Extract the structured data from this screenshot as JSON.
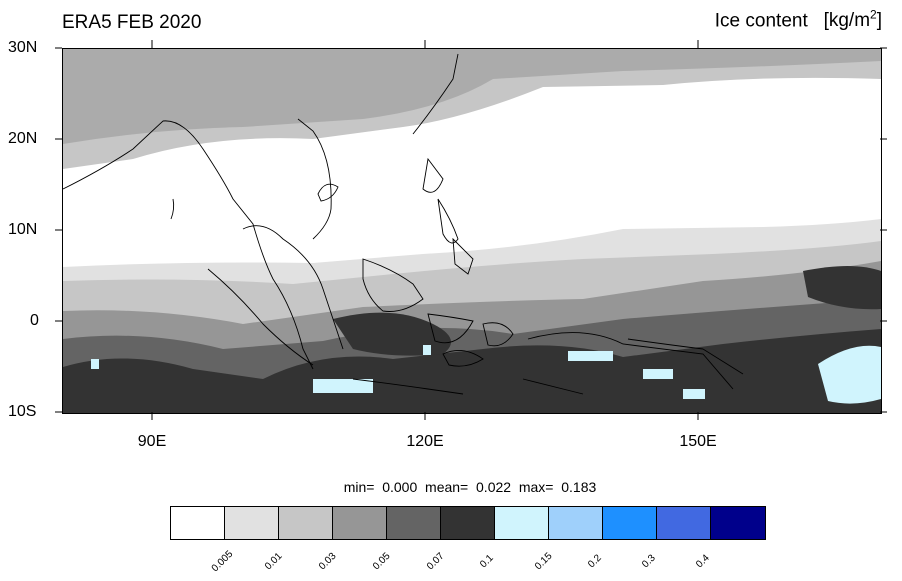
{
  "title_left": "ERA5 FEB 2020",
  "title_right": {
    "label": "Ice content",
    "unit_base": "[kg/m",
    "unit_sup": "2",
    "unit_close": "]"
  },
  "lat_labels": [
    "30N",
    "20N",
    "10N",
    "0",
    "10S"
  ],
  "lon_labels": [
    "90E",
    "120E",
    "150E"
  ],
  "stats": {
    "min_label": "min=",
    "min": "0.000",
    "mean_label": "mean=",
    "mean": "0.022",
    "max_label": "max=",
    "max": "0.183"
  },
  "colorbar": {
    "colors": [
      "#ffffff",
      "#e1e1e1",
      "#c6c6c6",
      "#969696",
      "#646464",
      "#333333",
      "#d0f4fd",
      "#9fd0fb",
      "#1e90ff",
      "#4169e1",
      "#00008b"
    ],
    "ticks": [
      "0.005",
      "0.01",
      "0.03",
      "0.05",
      "0.07",
      "0.1",
      "0.15",
      "0.2",
      "0.3",
      "0.4"
    ]
  }
}
